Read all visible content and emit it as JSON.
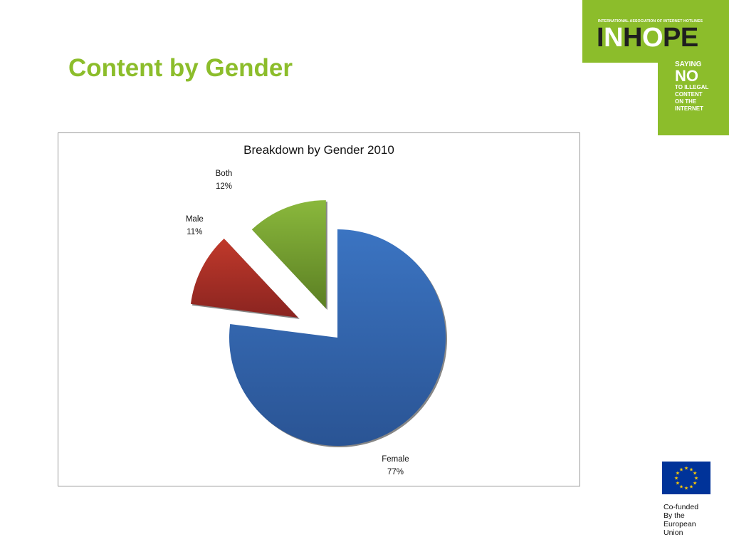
{
  "slide": {
    "title": "Content by Gender"
  },
  "logo": {
    "association": "INTERNATIONAL ASSOCIATION OF INTERNET HOTLINES",
    "word_parts": [
      {
        "text": "I",
        "tone": "dark"
      },
      {
        "text": "N",
        "tone": "light"
      },
      {
        "text": "H",
        "tone": "dark"
      },
      {
        "text": "O",
        "tone": "light"
      },
      {
        "text": "PE",
        "tone": "dark"
      }
    ],
    "slogan": [
      "SAYING",
      "NO",
      "TO ILLEGAL",
      "CONTENT",
      "ON THE",
      "INTERNET"
    ],
    "color": "#8cbd2b"
  },
  "footer": {
    "cofunded_lines": [
      "Co-funded",
      "By the",
      "European",
      "Union"
    ],
    "flag_color": "#003399",
    "star_color": "#ffcc00"
  },
  "chart_data": {
    "type": "pie",
    "title": "Breakdown by Gender 2010",
    "exploded": true,
    "slices": [
      {
        "label": "Female",
        "value": 77,
        "display": "77%",
        "color": "#3b74c2",
        "edge": "#2a5494"
      },
      {
        "label": "Male",
        "value": 11,
        "display": "11%",
        "color": "#c0392b",
        "edge": "#8a2420"
      },
      {
        "label": "Both",
        "value": 12,
        "display": "12%",
        "color": "#8ab83c",
        "edge": "#5b7f23"
      }
    ]
  }
}
